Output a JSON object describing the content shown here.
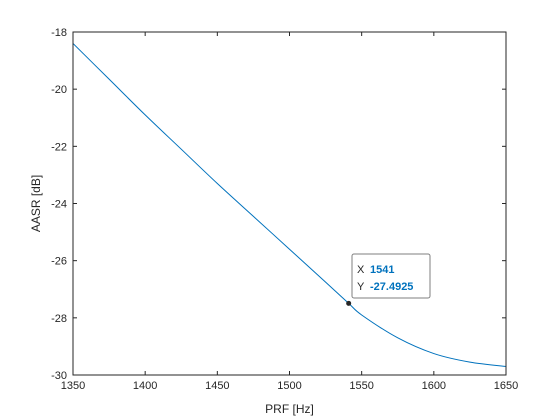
{
  "chart_data": {
    "type": "line",
    "title": "",
    "xlabel": "PRF [Hz]",
    "ylabel": "AASR [dB]",
    "xlim": [
      1350,
      1650
    ],
    "ylim": [
      -30,
      -18
    ],
    "xticks": [
      1350,
      1400,
      1450,
      1500,
      1550,
      1600,
      1650
    ],
    "yticks": [
      -30,
      -28,
      -26,
      -24,
      -22,
      -20,
      -18
    ],
    "xtick_labels": [
      "1350",
      "1400",
      "1450",
      "1500",
      "1550",
      "1600",
      "1650"
    ],
    "ytick_labels": [
      "-30",
      "-28",
      "-26",
      "-24",
      "-22",
      "-20",
      "-18"
    ],
    "grid": false,
    "line_color": "#0072bd",
    "series": [
      {
        "x": [
          1350,
          1375,
          1400,
          1425,
          1450,
          1475,
          1500,
          1525,
          1541,
          1550,
          1575,
          1600,
          1625,
          1650
        ],
        "y": [
          -18.4,
          -19.65,
          -20.9,
          -22.1,
          -23.3,
          -24.45,
          -25.6,
          -26.75,
          -27.4925,
          -27.9,
          -28.7,
          -29.25,
          -29.55,
          -29.7
        ]
      }
    ],
    "datatip": {
      "x_key": "X",
      "x_value": "1541",
      "y_key": "Y",
      "y_value": "-27.4925",
      "x": 1541,
      "y": -27.4925
    }
  }
}
